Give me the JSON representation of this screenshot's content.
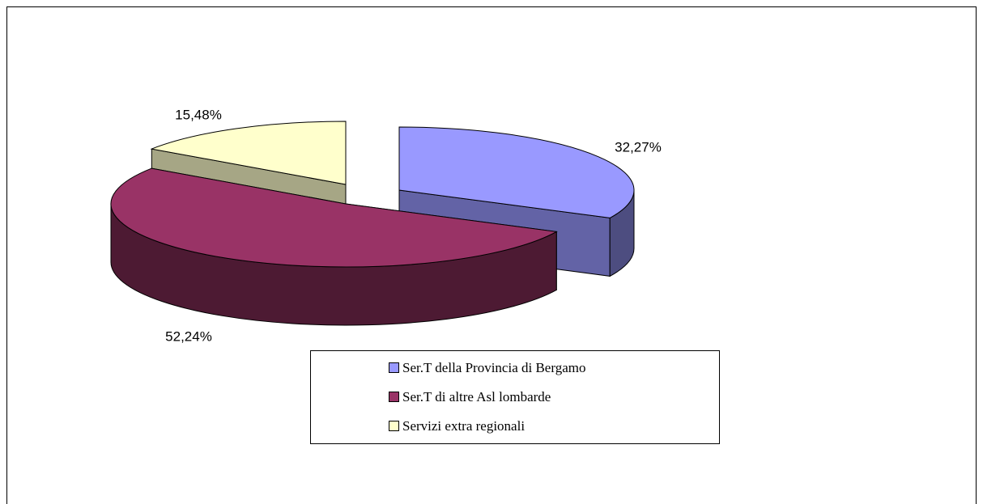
{
  "chart_data": {
    "type": "pie",
    "categories": [
      "Ser.T della Provincia di Bergamo",
      "Ser.T di altre Asl lombarde",
      "Servizi extra regionali"
    ],
    "values": [
      32.27,
      52.24,
      15.48
    ],
    "value_labels": [
      "32,27%",
      "52,24%",
      "15,48%"
    ],
    "colors": [
      "#9999ff",
      "#993366",
      "#ffffcc"
    ],
    "legend": "bottom"
  }
}
